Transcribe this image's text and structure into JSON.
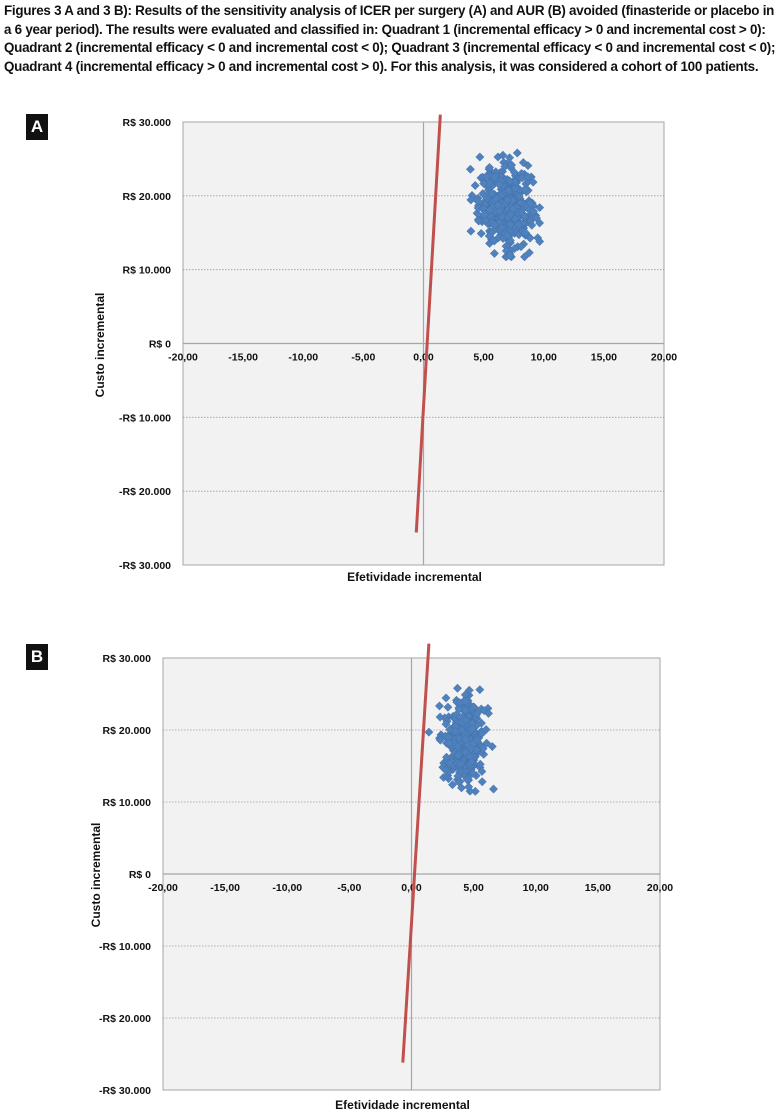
{
  "caption": {
    "lines": [
      "Figures 3 A and 3 B): Results of the sensitivity analysis of ICER per surgery (A) and AUR (B) avoided (finasteride or placebo in",
      "a 6 year period). The results were evaluated and classified in: Quadrant 1 (incremental efficacy > 0 and incremental cost > 0):",
      "Quadrant 2 (incremental efficacy < 0 and incremental cost < 0); Quadrant 3 (incremental efficacy < 0 and incremental cost < 0);",
      "Quadrant 4 (incremental efficacy > 0 and incremental cost > 0). For this analysis, it was considered a cohort of 100 patients."
    ]
  },
  "colors": {
    "plot_background": "#f2f2f2",
    "points": "#4f81bd",
    "line": "#c0504d",
    "axis": "#a6a6a6",
    "grid": "#9a9a9a"
  },
  "chart_data": [
    {
      "panel": "A",
      "type": "scatter",
      "xlabel": "Efetividade incremental",
      "ylabel": "Custo incremental",
      "xlim": [
        -20,
        20
      ],
      "ylim": [
        -30000,
        30000
      ],
      "grid": "horizontal dotted",
      "x_ticks": [
        "-20,00",
        "-15,00",
        "-10,00",
        "-5,00",
        "0,00",
        "5,00",
        "10,00",
        "15,00",
        "20,00"
      ],
      "y_ticks": [
        "-R$ 30.000",
        "-R$ 20.000",
        "-R$ 10.000",
        "R$ 0",
        "R$ 10.000",
        "R$ 20.000",
        "R$ 30.000"
      ],
      "cloud": {
        "x_center": 6.8,
        "x_spread": 1.1,
        "y_center": 18500,
        "y_spread": 2600,
        "count": 400
      },
      "points": [
        {
          "x": 3.9,
          "y": 23600
        },
        {
          "x": 4.3,
          "y": 21400
        },
        {
          "x": 6.6,
          "y": 25500
        },
        {
          "x": 7.8,
          "y": 25800
        },
        {
          "x": 8.3,
          "y": 24500
        },
        {
          "x": 9.4,
          "y": 17000
        },
        {
          "x": 5.9,
          "y": 12200
        },
        {
          "x": 7.2,
          "y": 11900
        },
        {
          "x": 8.8,
          "y": 12300
        },
        {
          "x": 4.8,
          "y": 14900
        },
        {
          "x": 5.2,
          "y": 22600
        }
      ],
      "line": {
        "x": [
          -0.6,
          1.4
        ],
        "y": [
          -25600,
          31000
        ]
      }
    },
    {
      "panel": "B",
      "type": "scatter",
      "xlabel": "Efetividade incremental",
      "ylabel": "Custo incremental",
      "xlim": [
        -20,
        20
      ],
      "ylim": [
        -30000,
        30000
      ],
      "grid": "horizontal dotted",
      "x_ticks": [
        "-20,00",
        "-15,00",
        "-10,00",
        "-5,00",
        "0,00",
        "5,00",
        "10,00",
        "15,00",
        "20,00"
      ],
      "y_ticks": [
        "-R$ 30.000",
        "-R$ 20.000",
        "-R$ 10.000",
        "R$ 0",
        "R$ 10.000",
        "R$ 20.000",
        "R$ 30.000"
      ],
      "cloud": {
        "x_center": 4.2,
        "x_spread": 0.75,
        "y_center": 18500,
        "y_spread": 2700,
        "count": 400
      },
      "points": [
        {
          "x": 1.4,
          "y": 19700
        },
        {
          "x": 3.7,
          "y": 25800
        },
        {
          "x": 5.5,
          "y": 25600
        },
        {
          "x": 6.5,
          "y": 17700
        },
        {
          "x": 6.6,
          "y": 11800
        },
        {
          "x": 3.3,
          "y": 12400
        },
        {
          "x": 4.6,
          "y": 12100
        },
        {
          "x": 2.3,
          "y": 21800
        },
        {
          "x": 6.2,
          "y": 22300
        }
      ],
      "line": {
        "x": [
          -0.7,
          1.4
        ],
        "y": [
          -26200,
          32000
        ]
      }
    }
  ]
}
